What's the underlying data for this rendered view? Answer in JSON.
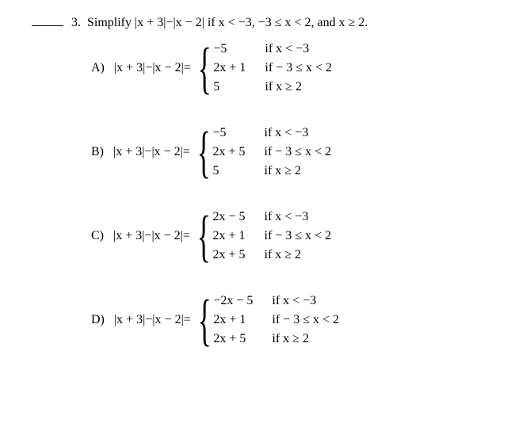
{
  "question": {
    "number": "3.",
    "prompt": "Simplify |x + 3|−|x − 2| if x < −3,  −3 ≤ x < 2, and  x ≥ 2."
  },
  "lhs": "|x + 3|−|x − 2|=",
  "choices": [
    {
      "label": "A)",
      "cases": [
        {
          "expr": "−5",
          "cond": "if x < −3"
        },
        {
          "expr": "2x + 1",
          "cond": "if  − 3 ≤ x < 2"
        },
        {
          "expr": "5",
          "cond": "if x ≥ 2"
        }
      ]
    },
    {
      "label": "B)",
      "cases": [
        {
          "expr": "−5",
          "cond": "if x < −3"
        },
        {
          "expr": "2x + 5",
          "cond": "if  − 3 ≤ x < 2"
        },
        {
          "expr": "5",
          "cond": "if x ≥ 2"
        }
      ]
    },
    {
      "label": "C)",
      "cases": [
        {
          "expr": "2x − 5",
          "cond": "if x < −3"
        },
        {
          "expr": "2x + 1",
          "cond": "if  − 3 ≤ x < 2"
        },
        {
          "expr": "2x + 5",
          "cond": "if x ≥ 2"
        }
      ]
    },
    {
      "label": "D)",
      "cases": [
        {
          "expr": "−2x − 5",
          "cond": "if x < −3"
        },
        {
          "expr": "2x + 1",
          "cond": "if  − 3 ≤ x < 2"
        },
        {
          "expr": "2x + 5",
          "cond": "if x ≥ 2"
        }
      ]
    }
  ]
}
